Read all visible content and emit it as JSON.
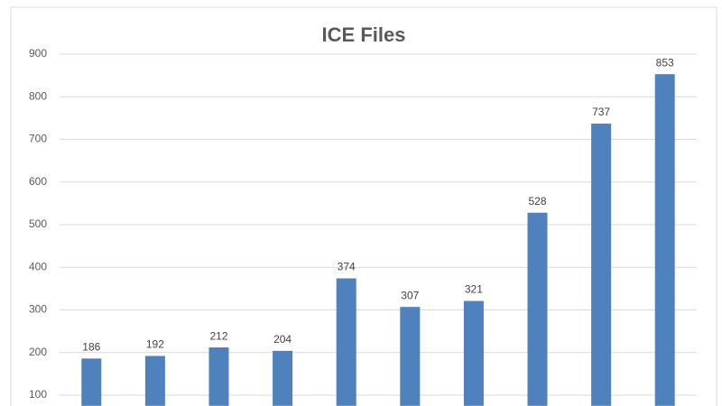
{
  "chart_data": {
    "type": "bar",
    "title": "ICE Files",
    "categories": [
      null,
      null,
      null,
      null,
      null,
      null,
      null,
      null,
      null,
      null
    ],
    "values": [
      186,
      192,
      212,
      204,
      374,
      307,
      321,
      528,
      737,
      853
    ],
    "color": "#4f81bd",
    "ylim": [
      75,
      900
    ],
    "yticks": [
      100,
      200,
      300,
      400,
      500,
      600,
      700,
      800,
      900
    ],
    "grid": true
  }
}
